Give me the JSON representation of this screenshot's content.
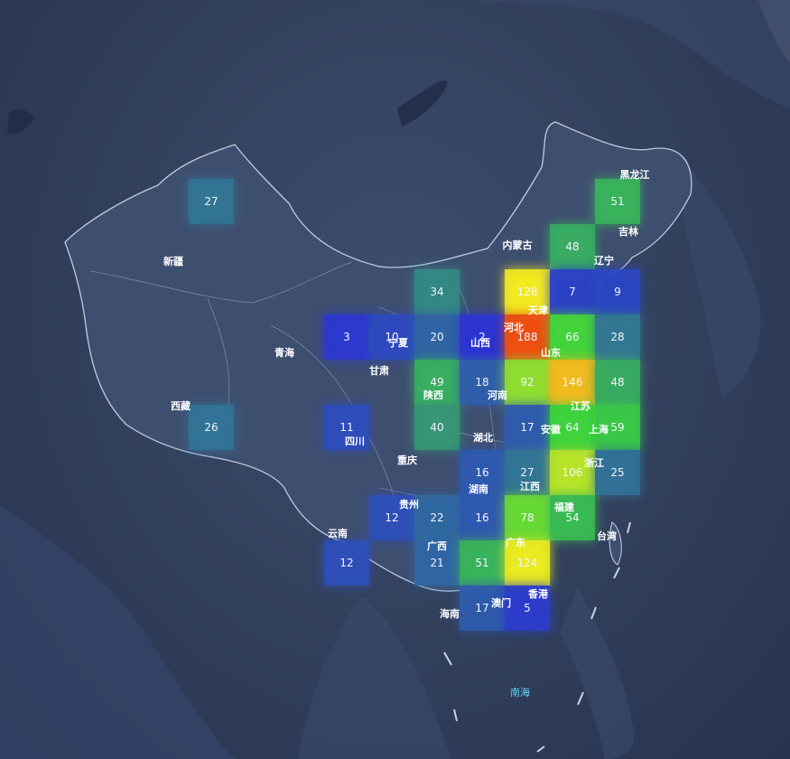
{
  "map": {
    "sea_label": "南海",
    "colors": {
      "background": "#33425f",
      "land": "#3e4e6d",
      "border": "#c9d3e6",
      "glow": "#f5f0a0"
    },
    "visual_map": {
      "min": 0,
      "max": 190,
      "colors": [
        "#2a2fd8",
        "#3bd63b",
        "#f7f01e",
        "#f24a10"
      ]
    },
    "province_labels": [
      {
        "name": "新疆"
      },
      {
        "name": "西藏"
      },
      {
        "name": "青海"
      },
      {
        "name": "甘肃"
      },
      {
        "name": "四川"
      },
      {
        "name": "重庆"
      },
      {
        "name": "云南"
      },
      {
        "name": "贵州"
      },
      {
        "name": "广西"
      },
      {
        "name": "广东"
      },
      {
        "name": "海南"
      },
      {
        "name": "澳门"
      },
      {
        "name": "香港"
      },
      {
        "name": "福建"
      },
      {
        "name": "台湾"
      },
      {
        "name": "江西"
      },
      {
        "name": "湖南"
      },
      {
        "name": "湖北"
      },
      {
        "name": "河南"
      },
      {
        "name": "陕西"
      },
      {
        "name": "山西"
      },
      {
        "name": "宁夏"
      },
      {
        "name": "内蒙古"
      },
      {
        "name": "河北"
      },
      {
        "name": "天津"
      },
      {
        "name": "山东"
      },
      {
        "name": "江苏"
      },
      {
        "name": "安徽"
      },
      {
        "name": "上海"
      },
      {
        "name": "浙江"
      },
      {
        "name": "辽宁"
      },
      {
        "name": "吉林"
      },
      {
        "name": "黑龙江"
      }
    ]
  },
  "chart_data": {
    "type": "heatmap",
    "series": [
      {
        "values": [
          {
            "col": 0,
            "row": 0,
            "value": 27
          },
          {
            "col": 9,
            "row": 0,
            "value": 51
          },
          {
            "col": 8,
            "row": 1,
            "value": 48
          },
          {
            "col": 5,
            "row": 2,
            "value": 34
          },
          {
            "col": 7,
            "row": 2,
            "value": 128
          },
          {
            "col": 8,
            "row": 2,
            "value": 7
          },
          {
            "col": 9,
            "row": 2,
            "value": 9
          },
          {
            "col": 3,
            "row": 3,
            "value": 3
          },
          {
            "col": 4,
            "row": 3,
            "value": 10
          },
          {
            "col": 5,
            "row": 3,
            "value": 20
          },
          {
            "col": 6,
            "row": 3,
            "value": 2
          },
          {
            "col": 7,
            "row": 3,
            "value": 188
          },
          {
            "col": 8,
            "row": 3,
            "value": 66
          },
          {
            "col": 9,
            "row": 3,
            "value": 28
          },
          {
            "col": 5,
            "row": 4,
            "value": 49
          },
          {
            "col": 6,
            "row": 4,
            "value": 18
          },
          {
            "col": 7,
            "row": 4,
            "value": 92
          },
          {
            "col": 8,
            "row": 4,
            "value": 146
          },
          {
            "col": 9,
            "row": 4,
            "value": 48
          },
          {
            "col": 0,
            "row": 5,
            "value": 26
          },
          {
            "col": 3,
            "row": 5,
            "value": 11
          },
          {
            "col": 5,
            "row": 5,
            "value": 40
          },
          {
            "col": 7,
            "row": 5,
            "value": 17
          },
          {
            "col": 8,
            "row": 5,
            "value": 64
          },
          {
            "col": 9,
            "row": 5,
            "value": 59
          },
          {
            "col": 6,
            "row": 6,
            "value": 16
          },
          {
            "col": 7,
            "row": 6,
            "value": 27
          },
          {
            "col": 8,
            "row": 6,
            "value": 106
          },
          {
            "col": 9,
            "row": 6,
            "value": 25
          },
          {
            "col": 4,
            "row": 7,
            "value": 12
          },
          {
            "col": 5,
            "row": 7,
            "value": 22
          },
          {
            "col": 6,
            "row": 7,
            "value": 16
          },
          {
            "col": 7,
            "row": 7,
            "value": 78
          },
          {
            "col": 8,
            "row": 7,
            "value": 54
          },
          {
            "col": 3,
            "row": 8,
            "value": 12
          },
          {
            "col": 5,
            "row": 8,
            "value": 21
          },
          {
            "col": 6,
            "row": 8,
            "value": 51
          },
          {
            "col": 7,
            "row": 8,
            "value": 124
          },
          {
            "col": 6,
            "row": 9,
            "value": 17
          },
          {
            "col": 7,
            "row": 9,
            "value": 5
          }
        ]
      }
    ]
  }
}
